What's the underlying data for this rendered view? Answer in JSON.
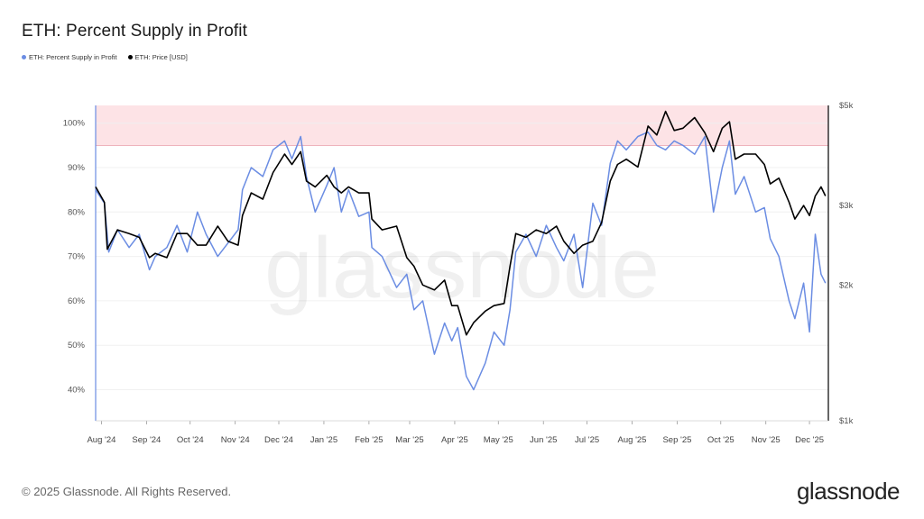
{
  "colors": {
    "supply": "#6b8de3",
    "price": "#000000",
    "band": "#fde3e6",
    "band_line": "#e99aa5"
  },
  "footer": {
    "copyright": "© 2025 Glassnode. All Rights Reserved.",
    "logo": "glassnode",
    "watermark": "glassnode"
  },
  "chart_data": {
    "type": "line",
    "title": "ETH: Percent Supply in Profit",
    "legend": [
      "ETH: Percent Supply in Profit",
      "ETH: Price [USD]"
    ],
    "legend_placement": "top-left",
    "x_ticks": [
      "Aug '24",
      "Sep '24",
      "Oct '24",
      "Nov '24",
      "Dec '24",
      "Jan '25",
      "Feb '25",
      "Mar '25",
      "Apr '25",
      "May '25",
      "Jun '25",
      "Jul '25",
      "Aug '25",
      "Sep '25",
      "Oct '25",
      "Nov '25",
      "Dec '25"
    ],
    "y_left_ticks": [
      "40%",
      "50%",
      "60%",
      "70%",
      "80%",
      "90%",
      "100%"
    ],
    "y_left_range": [
      33,
      104
    ],
    "y_right_ticks": [
      "$1k",
      "$2k",
      "$3k",
      "$5k"
    ],
    "y_right_scale": "log",
    "y_right_range": [
      1000,
      5000
    ],
    "band": [
      95,
      104
    ],
    "series": [
      {
        "name": "ETH: Percent Supply in Profit",
        "x": [
          "2024-07-28",
          "2024-08-03",
          "2024-08-06",
          "2024-08-12",
          "2024-08-20",
          "2024-08-27",
          "2024-09-03",
          "2024-09-07",
          "2024-09-15",
          "2024-09-22",
          "2024-09-29",
          "2024-10-06",
          "2024-10-12",
          "2024-10-20",
          "2024-10-27",
          "2024-11-03",
          "2024-11-06",
          "2024-11-12",
          "2024-11-20",
          "2024-11-27",
          "2024-12-05",
          "2024-12-10",
          "2024-12-16",
          "2024-12-20",
          "2024-12-26",
          "2025-01-03",
          "2025-01-08",
          "2025-01-13",
          "2025-01-18",
          "2025-01-25",
          "2025-02-01",
          "2025-02-03",
          "2025-02-10",
          "2025-02-20",
          "2025-02-27",
          "2025-03-04",
          "2025-03-10",
          "2025-03-18",
          "2025-03-25",
          "2025-03-30",
          "2025-04-03",
          "2025-04-09",
          "2025-04-14",
          "2025-04-22",
          "2025-04-28",
          "2025-05-05",
          "2025-05-09",
          "2025-05-13",
          "2025-05-20",
          "2025-05-27",
          "2025-06-03",
          "2025-06-10",
          "2025-06-15",
          "2025-06-22",
          "2025-06-28",
          "2025-07-05",
          "2025-07-11",
          "2025-07-17",
          "2025-07-22",
          "2025-07-28",
          "2025-08-05",
          "2025-08-12",
          "2025-08-18",
          "2025-08-24",
          "2025-08-30",
          "2025-09-05",
          "2025-09-13",
          "2025-09-20",
          "2025-09-26",
          "2025-10-02",
          "2025-10-07",
          "2025-10-11",
          "2025-10-17",
          "2025-10-25",
          "2025-10-31",
          "2025-11-04",
          "2025-11-10",
          "2025-11-17",
          "2025-11-21",
          "2025-11-27",
          "2025-12-01",
          "2025-12-05",
          "2025-12-09",
          "2025-12-12"
        ],
        "values": [
          85,
          82,
          71,
          76,
          72,
          75,
          67,
          70,
          72,
          77,
          71,
          80,
          75,
          70,
          73,
          76,
          85,
          90,
          88,
          94,
          96,
          92,
          97,
          88,
          80,
          86,
          90,
          80,
          85,
          79,
          80,
          72,
          70,
          63,
          66,
          58,
          60,
          48,
          55,
          51,
          54,
          43,
          40,
          46,
          53,
          50,
          58,
          71,
          75,
          70,
          77,
          72,
          69,
          75,
          63,
          82,
          77,
          91,
          96,
          94,
          97,
          98,
          95,
          94,
          96,
          95,
          93,
          97,
          80,
          90,
          96,
          84,
          88,
          80,
          81,
          74,
          70,
          60,
          56,
          64,
          53,
          75,
          66,
          64
        ]
      },
      {
        "name": "ETH: Price [USD]",
        "x": [
          "2024-07-28",
          "2024-08-03",
          "2024-08-05",
          "2024-08-12",
          "2024-08-20",
          "2024-08-27",
          "2024-09-03",
          "2024-09-07",
          "2024-09-15",
          "2024-09-22",
          "2024-09-29",
          "2024-10-06",
          "2024-10-12",
          "2024-10-20",
          "2024-10-27",
          "2024-11-03",
          "2024-11-06",
          "2024-11-12",
          "2024-11-20",
          "2024-11-27",
          "2024-12-05",
          "2024-12-10",
          "2024-12-16",
          "2024-12-20",
          "2024-12-26",
          "2025-01-03",
          "2025-01-08",
          "2025-01-13",
          "2025-01-18",
          "2025-01-25",
          "2025-02-01",
          "2025-02-03",
          "2025-02-10",
          "2025-02-20",
          "2025-02-27",
          "2025-03-04",
          "2025-03-10",
          "2025-03-18",
          "2025-03-25",
          "2025-03-30",
          "2025-04-03",
          "2025-04-09",
          "2025-04-14",
          "2025-04-22",
          "2025-04-28",
          "2025-05-05",
          "2025-05-09",
          "2025-05-13",
          "2025-05-20",
          "2025-05-27",
          "2025-06-03",
          "2025-06-10",
          "2025-06-15",
          "2025-06-22",
          "2025-06-28",
          "2025-07-05",
          "2025-07-11",
          "2025-07-17",
          "2025-07-22",
          "2025-07-28",
          "2025-08-05",
          "2025-08-12",
          "2025-08-18",
          "2025-08-24",
          "2025-08-30",
          "2025-09-05",
          "2025-09-13",
          "2025-09-20",
          "2025-09-26",
          "2025-10-02",
          "2025-10-07",
          "2025-10-11",
          "2025-10-17",
          "2025-10-25",
          "2025-10-31",
          "2025-11-04",
          "2025-11-10",
          "2025-11-17",
          "2025-11-21",
          "2025-11-27",
          "2025-12-01",
          "2025-12-05",
          "2025-12-09",
          "2025-12-12"
        ],
        "values": [
          3300,
          3050,
          2400,
          2650,
          2600,
          2550,
          2300,
          2350,
          2300,
          2600,
          2600,
          2450,
          2450,
          2700,
          2500,
          2450,
          2850,
          3200,
          3100,
          3550,
          3900,
          3700,
          3950,
          3400,
          3300,
          3500,
          3300,
          3200,
          3300,
          3200,
          3200,
          2800,
          2650,
          2700,
          2300,
          2200,
          2000,
          1950,
          2050,
          1800,
          1800,
          1550,
          1650,
          1750,
          1800,
          1820,
          2200,
          2600,
          2550,
          2650,
          2600,
          2700,
          2500,
          2350,
          2450,
          2500,
          2750,
          3400,
          3700,
          3800,
          3650,
          4500,
          4300,
          4850,
          4400,
          4450,
          4700,
          4350,
          3950,
          4450,
          4600,
          3800,
          3900,
          3900,
          3700,
          3350,
          3450,
          3050,
          2800,
          3000,
          2850,
          3150,
          3300,
          3150
        ]
      }
    ]
  }
}
